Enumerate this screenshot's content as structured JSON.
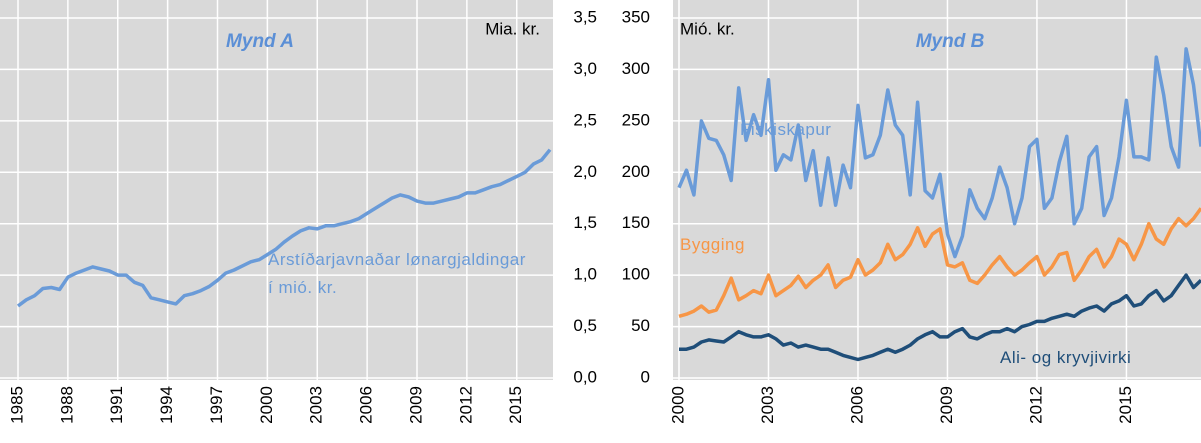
{
  "chart_data": [
    {
      "type": "line",
      "title": "Mynd A",
      "y_label": "Mia. kr.",
      "x": [
        1985,
        1985.5,
        1986,
        1986.5,
        1987,
        1987.5,
        1988,
        1988.5,
        1989,
        1989.5,
        1990,
        1990.5,
        1991,
        1991.5,
        1992,
        1992.5,
        1993,
        1993.5,
        1994,
        1994.5,
        1995,
        1995.5,
        1996,
        1996.5,
        1997,
        1997.5,
        1998,
        1998.5,
        1999,
        1999.5,
        2000,
        2000.5,
        2001,
        2001.5,
        2002,
        2002.5,
        2003,
        2003.5,
        2004,
        2004.5,
        2005,
        2005.5,
        2006,
        2006.5,
        2007,
        2007.5,
        2008,
        2008.5,
        2009,
        2009.5,
        2010,
        2010.5,
        2011,
        2011.5,
        2012,
        2012.5,
        2013,
        2013.5,
        2014,
        2014.5,
        2015,
        2015.5,
        2016,
        2016.5,
        2017
      ],
      "series": [
        {
          "name": "Árstíðarjavnaðar lønargjaldingar í mió. kr.",
          "color": "#6a9bd8",
          "values": [
            0.7,
            0.76,
            0.8,
            0.87,
            0.88,
            0.86,
            0.98,
            1.02,
            1.05,
            1.08,
            1.06,
            1.04,
            1.0,
            1.0,
            0.93,
            0.9,
            0.78,
            0.76,
            0.74,
            0.72,
            0.8,
            0.82,
            0.85,
            0.89,
            0.95,
            1.02,
            1.05,
            1.09,
            1.13,
            1.15,
            1.2,
            1.25,
            1.32,
            1.38,
            1.43,
            1.46,
            1.45,
            1.48,
            1.48,
            1.5,
            1.52,
            1.55,
            1.6,
            1.65,
            1.7,
            1.75,
            1.78,
            1.76,
            1.72,
            1.7,
            1.7,
            1.72,
            1.74,
            1.76,
            1.8,
            1.8,
            1.83,
            1.86,
            1.88,
            1.92,
            1.96,
            2.0,
            2.08,
            2.12,
            2.22
          ]
        }
      ],
      "xlim": [
        1985,
        2017
      ],
      "ylim": [
        0,
        3.5
      ],
      "xticks": [
        1985,
        1988,
        1991,
        1994,
        1997,
        2000,
        2003,
        2006,
        2009,
        2012,
        2015
      ],
      "yticks": [
        {
          "value": 0,
          "label": "0,0"
        },
        {
          "value": 0.5,
          "label": "0,5"
        },
        {
          "value": 1,
          "label": "1,0"
        },
        {
          "value": 1.5,
          "label": "1,5"
        },
        {
          "value": 2,
          "label": "2,0"
        },
        {
          "value": 2.5,
          "label": "2,5"
        },
        {
          "value": 3,
          "label": "3,0"
        },
        {
          "value": 3.5,
          "label": "3,5"
        }
      ],
      "grid": true
    },
    {
      "type": "line",
      "title": "Mynd B",
      "y_label": "Mió. kr.",
      "x": [
        2000,
        2000.25,
        2000.5,
        2000.75,
        2001,
        2001.25,
        2001.5,
        2001.75,
        2002,
        2002.25,
        2002.5,
        2002.75,
        2003,
        2003.25,
        2003.5,
        2003.75,
        2004,
        2004.25,
        2004.5,
        2004.75,
        2005,
        2005.25,
        2005.5,
        2005.75,
        2006,
        2006.25,
        2006.5,
        2006.75,
        2007,
        2007.25,
        2007.5,
        2007.75,
        2008,
        2008.25,
        2008.5,
        2008.75,
        2009,
        2009.25,
        2009.5,
        2009.75,
        2010,
        2010.25,
        2010.5,
        2010.75,
        2011,
        2011.25,
        2011.5,
        2011.75,
        2012,
        2012.25,
        2012.5,
        2012.75,
        2013,
        2013.25,
        2013.5,
        2013.75,
        2014,
        2014.25,
        2014.5,
        2014.75,
        2015,
        2015.25,
        2015.5,
        2015.75,
        2016,
        2016.25,
        2016.5,
        2016.75,
        2017,
        2017.25,
        2017.5
      ],
      "series": [
        {
          "name": "Fiskiskapur",
          "color": "#6a9bd8",
          "values": [
            185,
            202,
            178,
            250,
            233,
            231,
            217,
            192,
            282,
            231,
            256,
            236,
            290,
            202,
            217,
            212,
            246,
            192,
            221,
            168,
            214,
            168,
            207,
            185,
            265,
            214,
            217,
            236,
            280,
            246,
            236,
            178,
            268,
            182,
            175,
            198,
            140,
            118,
            138,
            183,
            165,
            155,
            175,
            205,
            185,
            150,
            175,
            225,
            232,
            165,
            175,
            210,
            235,
            150,
            165,
            215,
            225,
            158,
            175,
            215,
            270,
            215,
            215,
            212,
            312,
            275,
            225,
            205,
            320,
            285,
            225
          ]
        },
        {
          "name": "Bygging",
          "color": "#f79646",
          "values": [
            60,
            62,
            65,
            70,
            64,
            66,
            80,
            97,
            76,
            80,
            85,
            82,
            100,
            80,
            85,
            90,
            99,
            88,
            95,
            100,
            110,
            88,
            95,
            98,
            115,
            100,
            105,
            112,
            130,
            115,
            120,
            130,
            146,
            128,
            140,
            145,
            110,
            108,
            112,
            95,
            92,
            100,
            110,
            118,
            108,
            100,
            105,
            112,
            118,
            100,
            108,
            120,
            122,
            95,
            105,
            118,
            125,
            108,
            118,
            135,
            130,
            115,
            130,
            150,
            135,
            130,
            145,
            155,
            148,
            155,
            165
          ]
        },
        {
          "name": "Ali- og kryvjivirki",
          "color": "#1f4e79",
          "values": [
            28,
            28,
            30,
            35,
            37,
            36,
            35,
            40,
            45,
            42,
            40,
            40,
            42,
            38,
            32,
            34,
            30,
            32,
            30,
            28,
            28,
            25,
            22,
            20,
            18,
            20,
            22,
            25,
            28,
            25,
            28,
            32,
            38,
            42,
            45,
            40,
            40,
            45,
            48,
            40,
            38,
            42,
            45,
            45,
            48,
            45,
            50,
            52,
            55,
            55,
            58,
            60,
            62,
            60,
            65,
            68,
            70,
            65,
            72,
            75,
            80,
            70,
            72,
            80,
            85,
            75,
            80,
            90,
            100,
            88,
            95
          ]
        }
      ],
      "xlim": [
        2000,
        2017.5
      ],
      "ylim": [
        0,
        350
      ],
      "xticks": [
        2000,
        2003,
        2006,
        2009,
        2012,
        2015
      ],
      "yticks": [
        0,
        50,
        100,
        150,
        200,
        250,
        300,
        350
      ],
      "grid": true
    }
  ]
}
